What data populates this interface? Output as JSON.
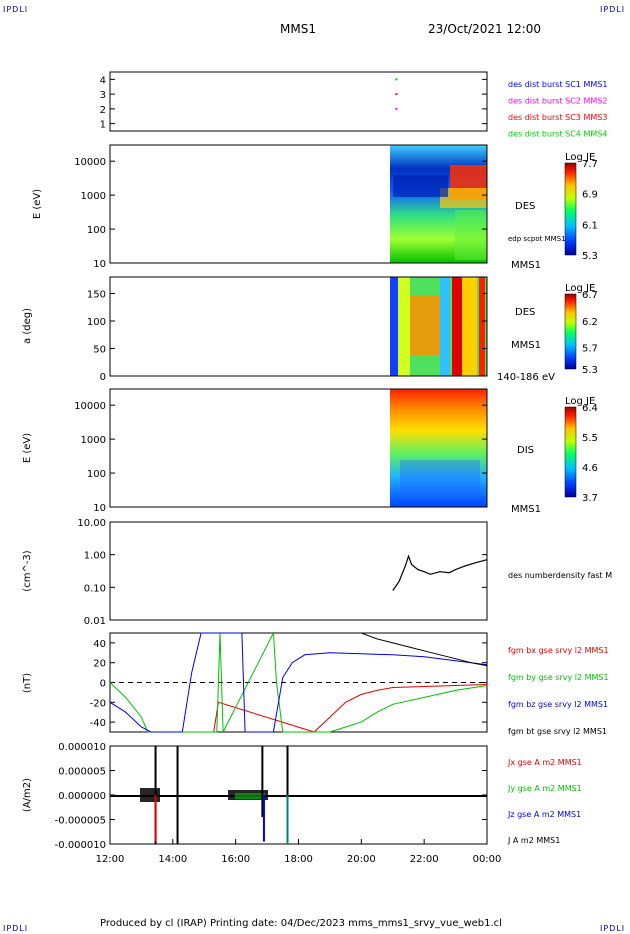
{
  "corner_label": "IPDLI",
  "header": {
    "left": "MMS1",
    "right": "23/Oct/2021 12:00"
  },
  "footer": "Produced by cl (IRAP)   Printing date: 04/Dec/2023   mms_mms1_srvy_vue_web1.cl",
  "time_axis": {
    "ticks": [
      "12:00",
      "14:00",
      "16:00",
      "18:00",
      "20:00",
      "22:00",
      "00:00"
    ],
    "start_hour": 12,
    "end_hour": 24
  },
  "colors": {
    "mms1": "#0000ff",
    "mms2": "#ff00ff",
    "mms3": "#ff0000",
    "mms4": "#00cc00",
    "bx": "#e00000",
    "by": "#00c000",
    "bz": "#0000e0",
    "bt": "#000000"
  },
  "chart_data": [
    {
      "type": "scatter",
      "ylim": [
        0.5,
        4.5
      ],
      "yticks": [
        "1",
        "2",
        "3",
        "4"
      ],
      "legend": [
        "des dist burst SC1 MMS1",
        "des dist burst SC2 MMS2",
        "des dist burst SC3 MMS3",
        "des dist burst SC4 MMS4"
      ],
      "series": [
        {
          "name": "des dist burst SC4 MMS4",
          "x": [
            21.1
          ],
          "y": [
            4
          ]
        },
        {
          "name": "des dist burst SC3 MMS3",
          "x": [
            21.1
          ],
          "y": [
            3
          ]
        },
        {
          "name": "des dist burst SC2 MMS2",
          "x": [
            21.1
          ],
          "y": [
            2
          ]
        }
      ]
    },
    {
      "type": "heatmap",
      "ylabel": "E (eV)",
      "yscale": "log",
      "ylim": [
        10,
        30000
      ],
      "yticks": [
        "10",
        "100",
        "1000",
        "10000"
      ],
      "side_labels": [
        "DES",
        "edp scpot MMS1",
        "MMS1"
      ],
      "colorbar": {
        "title": "Log JE",
        "ticks": [
          "7.7",
          "6.9",
          "6.1",
          "5.3"
        ],
        "range": [
          5.3,
          7.7
        ]
      },
      "data_start_hour": 21.0
    },
    {
      "type": "heatmap",
      "ylabel": "a (deg)",
      "ylim": [
        0,
        180
      ],
      "yticks": [
        "0",
        "50",
        "100",
        "150"
      ],
      "side_labels": [
        "DES",
        "MMS1",
        "140-186 eV"
      ],
      "colorbar": {
        "title": "Log JE",
        "ticks": [
          "6.7",
          "6.2",
          "5.7",
          "5.3"
        ],
        "range": [
          5.3,
          6.7
        ]
      },
      "data_start_hour": 21.0
    },
    {
      "type": "heatmap",
      "ylabel": "E (eV)",
      "yscale": "log",
      "ylim": [
        10,
        30000
      ],
      "yticks": [
        "10",
        "100",
        "1000",
        "10000"
      ],
      "side_labels": [
        "DIS",
        "MMS1"
      ],
      "colorbar": {
        "title": "Log JE",
        "ticks": [
          "6.4",
          "5.5",
          "4.6",
          "3.7"
        ],
        "range": [
          3.7,
          6.4
        ]
      },
      "data_start_hour": 21.0
    },
    {
      "type": "line",
      "ylabel": "(cm^-3)",
      "yscale": "log",
      "ylim": [
        0.01,
        10
      ],
      "yticks": [
        "0.01",
        "0.10",
        "1.00",
        "10.00"
      ],
      "series": [
        {
          "name": "des numberdensity fast M",
          "x": [
            21.0,
            21.2,
            21.4,
            21.5,
            21.6,
            21.8,
            22.0,
            22.2,
            22.5,
            22.8,
            23.0,
            23.3,
            23.6,
            24.0
          ],
          "y": [
            0.08,
            0.15,
            0.45,
            0.9,
            0.5,
            0.35,
            0.3,
            0.25,
            0.3,
            0.28,
            0.35,
            0.45,
            0.55,
            0.7
          ]
        }
      ]
    },
    {
      "type": "line",
      "ylabel": "(nT)",
      "ylim": [
        -50,
        50
      ],
      "yticks": [
        "-40",
        "-20",
        "0",
        "20",
        "40"
      ],
      "legend": [
        "fgm bx gse srvy l2 MMS1",
        "fgm by gse srvy l2 MMS1",
        "fgm bz gse srvy l2 MMS1",
        "fgm bt gse srvy l2 MMS1"
      ],
      "series": [
        {
          "name": "fgm bx gse srvy l2 MMS1",
          "x": [
            15.3,
            15.45,
            18.5,
            19.0,
            19.5,
            20.0,
            20.5,
            21.0,
            22.0,
            23.0,
            24.0
          ],
          "y": [
            -50,
            -20,
            -50,
            -35,
            -20,
            -12,
            -8,
            -5,
            -4,
            -3,
            -2
          ]
        },
        {
          "name": "fgm by gse srvy l2 MMS1",
          "x": [
            12.0,
            12.5,
            13.0,
            13.2,
            15.4,
            15.5,
            15.6,
            17.2,
            17.3,
            17.5,
            18.5,
            19.0,
            19.5,
            20.0,
            20.5,
            21.0,
            22.0,
            23.0,
            24.0
          ],
          "y": [
            0,
            -15,
            -35,
            -50,
            -50,
            50,
            -50,
            50,
            0,
            -50,
            -50,
            -50,
            -45,
            -40,
            -30,
            -22,
            -15,
            -8,
            -3
          ]
        },
        {
          "name": "fgm bz gse srvy l2 MMS1",
          "x": [
            12.0,
            12.5,
            13.0,
            13.3,
            14.3,
            14.6,
            14.9,
            16.2,
            16.3,
            17.2,
            17.5,
            17.8,
            18.2,
            19.0,
            20.0,
            21.0,
            22.0,
            23.0,
            24.0
          ],
          "y": [
            -20,
            -30,
            -45,
            -50,
            -50,
            10,
            50,
            50,
            -50,
            -50,
            5,
            20,
            28,
            30,
            29,
            28,
            26,
            22,
            18
          ]
        },
        {
          "name": "fgm bt gse srvy l2 MMS1",
          "x": [
            20.0,
            20.5,
            21.0,
            21.5,
            22.0,
            22.5,
            23.0,
            23.5,
            24.0
          ],
          "y": [
            50,
            44,
            40,
            36,
            32,
            28,
            24,
            20,
            17
          ]
        }
      ]
    },
    {
      "type": "line",
      "ylabel": "(A/m2)",
      "ylim": [
        -1e-05,
        1e-05
      ],
      "yticks": [
        "-0.000010",
        "-0.000005",
        "0.000000",
        "0.000005",
        "0.000010"
      ],
      "legend": [
        "Jx gse A m2 MMS1",
        "Jy gse A m2 MMS1",
        "Jz gse A m2 MMS1",
        "J A m2 MMS1"
      ],
      "spikes": [
        {
          "hour": 13.45,
          "lo": -1e-05,
          "hi": 1e-05,
          "color": "#000000"
        },
        {
          "hour": 14.15,
          "lo": -1e-05,
          "hi": 1e-05,
          "color": "#000000"
        },
        {
          "hour": 16.85,
          "lo": -4.5e-06,
          "hi": 1e-05,
          "color": "#000000"
        },
        {
          "hour": 17.65,
          "lo": -1e-05,
          "hi": 1e-05,
          "color": "#000000"
        },
        {
          "hour": 13.45,
          "lo": -9.5e-06,
          "hi": 0.0,
          "color": "#e00000"
        },
        {
          "hour": 16.9,
          "lo": -9.5e-06,
          "hi": 0.0,
          "color": "#0000e0"
        },
        {
          "hour": 17.65,
          "lo": -1e-05,
          "hi": 0.0,
          "color": "#008080"
        }
      ]
    }
  ]
}
